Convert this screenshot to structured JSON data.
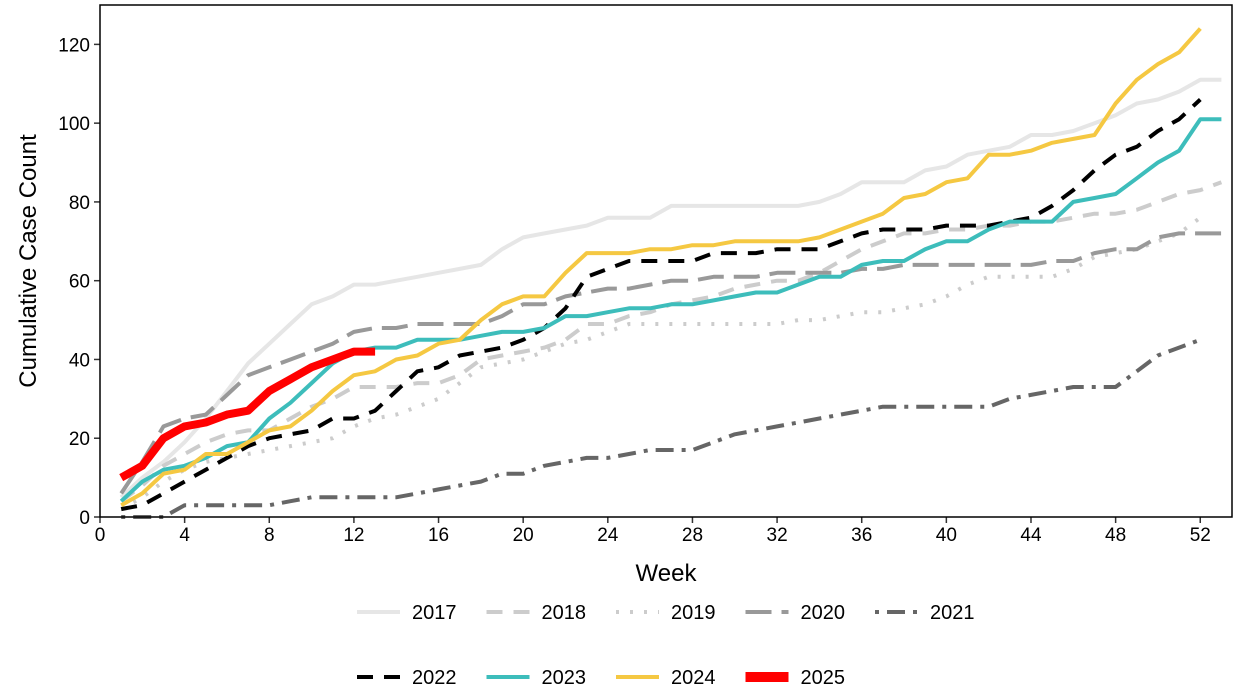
{
  "chart_data": {
    "type": "line",
    "x_label": "Week",
    "y_label": "Cumulative Case Count",
    "x": [
      1,
      2,
      3,
      4,
      5,
      6,
      7,
      8,
      9,
      10,
      11,
      12,
      13,
      14,
      15,
      16,
      17,
      18,
      19,
      20,
      21,
      22,
      23,
      24,
      25,
      26,
      27,
      28,
      29,
      30,
      31,
      32,
      33,
      34,
      35,
      36,
      37,
      38,
      39,
      40,
      41,
      42,
      43,
      44,
      45,
      46,
      47,
      48,
      49,
      50,
      51,
      52,
      53
    ],
    "xlim": [
      0,
      53.5
    ],
    "xticks": [
      0,
      4,
      8,
      12,
      16,
      20,
      24,
      28,
      32,
      36,
      40,
      44,
      48,
      52
    ],
    "ylim": [
      0,
      130
    ],
    "yticks": [
      0,
      20,
      40,
      60,
      80,
      100,
      120
    ],
    "grid": false,
    "series": [
      {
        "name": "2017",
        "color": "#e6e6e6",
        "linetype": "solid",
        "values": [
          5,
          10,
          14,
          19,
          25,
          32,
          39,
          44,
          49,
          54,
          56,
          59,
          59,
          60,
          61,
          62,
          63,
          64,
          68,
          71,
          72,
          73,
          74,
          76,
          76,
          76,
          79,
          79,
          79,
          79,
          79,
          79,
          79,
          80,
          82,
          85,
          85,
          85,
          88,
          89,
          92,
          93,
          94,
          97,
          97,
          98,
          100,
          102,
          105,
          106,
          108,
          111,
          111
        ]
      },
      {
        "name": "2018",
        "color": "#cccccc",
        "linetype": "dashed",
        "values": [
          4,
          8,
          13,
          16,
          19,
          21,
          22,
          22,
          25,
          28,
          30,
          33,
          33,
          33,
          34,
          34,
          36,
          40,
          41,
          42,
          43,
          45,
          49,
          49,
          51,
          52,
          54,
          55,
          56,
          58,
          59,
          60,
          60,
          62,
          65,
          68,
          70,
          72,
          72,
          73,
          73,
          74,
          74,
          75,
          75,
          76,
          77,
          77,
          78,
          80,
          82,
          83,
          85
        ]
      },
      {
        "name": "2019",
        "color": "#cccccc",
        "linetype": "dotted",
        "values": [
          2,
          5,
          9,
          12,
          14,
          15,
          16,
          17,
          18,
          19,
          20,
          23,
          25,
          26,
          28,
          30,
          34,
          38,
          39,
          40,
          42,
          44,
          45,
          47,
          49,
          49,
          49,
          49,
          49,
          49,
          49,
          49,
          50,
          50,
          51,
          52,
          52,
          53,
          54,
          56,
          59,
          61,
          61,
          61,
          61,
          63,
          66,
          67,
          68,
          70,
          72,
          76,
          null
        ]
      },
      {
        "name": "2020",
        "color": "#999999",
        "linetype": "longdash",
        "values": [
          6,
          14,
          23,
          25,
          26,
          31,
          36,
          38,
          40,
          42,
          44,
          47,
          48,
          48,
          49,
          49,
          49,
          49,
          51,
          54,
          54,
          56,
          57,
          58,
          58,
          59,
          60,
          60,
          61,
          61,
          61,
          62,
          62,
          62,
          62,
          63,
          63,
          64,
          64,
          64,
          64,
          64,
          64,
          64,
          65,
          65,
          67,
          68,
          68,
          71,
          72,
          72,
          72
        ]
      },
      {
        "name": "2021",
        "color": "#666666",
        "linetype": "dotdash",
        "values": [
          0,
          0,
          0,
          3,
          3,
          3,
          3,
          3,
          4,
          5,
          5,
          5,
          5,
          5,
          6,
          7,
          8,
          9,
          11,
          11,
          13,
          14,
          15,
          15,
          16,
          17,
          17,
          17,
          19,
          21,
          22,
          23,
          24,
          25,
          26,
          27,
          28,
          28,
          28,
          28,
          28,
          28,
          30,
          31,
          32,
          33,
          33,
          33,
          37,
          41,
          43,
          45,
          null
        ]
      },
      {
        "name": "2022",
        "color": "#000000",
        "linetype": "dashed",
        "values": [
          2,
          3,
          6,
          9,
          12,
          15,
          18,
          20,
          21,
          22,
          25,
          25,
          27,
          32,
          37,
          38,
          41,
          42,
          43,
          45,
          48,
          53,
          61,
          63,
          65,
          65,
          65,
          65,
          67,
          67,
          67,
          68,
          68,
          68,
          70,
          72,
          73,
          73,
          73,
          74,
          74,
          74,
          75,
          76,
          79,
          83,
          88,
          92,
          94,
          98,
          101,
          106,
          null
        ]
      },
      {
        "name": "2023",
        "color": "#3dbdbb",
        "linetype": "solid",
        "values": [
          4,
          9,
          12,
          13,
          15,
          18,
          19,
          25,
          29,
          34,
          39,
          42,
          43,
          43,
          45,
          45,
          45,
          46,
          47,
          47,
          48,
          51,
          51,
          52,
          53,
          53,
          54,
          54,
          55,
          56,
          57,
          57,
          59,
          61,
          61,
          64,
          65,
          65,
          68,
          70,
          70,
          73,
          75,
          75,
          75,
          80,
          81,
          82,
          86,
          90,
          93,
          101,
          101
        ]
      },
      {
        "name": "2024",
        "color": "#f5c842",
        "linetype": "solid",
        "values": [
          3,
          6,
          11,
          12,
          16,
          16,
          19,
          22,
          23,
          27,
          32,
          36,
          37,
          40,
          41,
          44,
          45,
          50,
          54,
          56,
          56,
          62,
          67,
          67,
          67,
          68,
          68,
          69,
          69,
          70,
          70,
          70,
          70,
          71,
          73,
          75,
          77,
          81,
          82,
          85,
          86,
          92,
          92,
          93,
          95,
          96,
          97,
          105,
          111,
          115,
          118,
          124,
          null
        ]
      },
      {
        "name": "2025",
        "color": "#ff0000",
        "linetype": "solid",
        "values": [
          10,
          13,
          20,
          23,
          24,
          26,
          27,
          32,
          35,
          38,
          40,
          42,
          42,
          null,
          null,
          null,
          null,
          null,
          null,
          null,
          null,
          null,
          null,
          null,
          null,
          null,
          null,
          null,
          null,
          null,
          null,
          null,
          null,
          null,
          null,
          null,
          null,
          null,
          null,
          null,
          null,
          null,
          null,
          null,
          null,
          null,
          null,
          null,
          null,
          null,
          null,
          null,
          null
        ]
      }
    ]
  }
}
